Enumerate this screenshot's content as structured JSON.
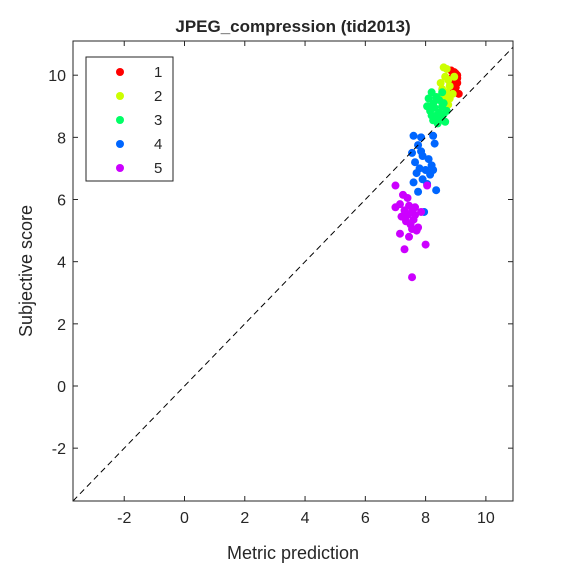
{
  "chart_data": {
    "type": "scatter",
    "title": "JPEG_compression (tid2013)",
    "xlabel": "Metric prediction",
    "ylabel": "Subjective score",
    "xlim": [
      -3.7,
      10.9
    ],
    "ylim": [
      -3.7,
      11.1
    ],
    "xticks": [
      -2,
      0,
      2,
      4,
      6,
      8,
      10
    ],
    "yticks": [
      -2,
      0,
      2,
      4,
      6,
      8,
      10
    ],
    "grid": false,
    "legend_position": "top-left",
    "reference_line": "y = x, dashed",
    "series": [
      {
        "name": "1",
        "color": "#ff0000",
        "points": [
          [
            8.85,
            10.15
          ],
          [
            8.95,
            10.1
          ],
          [
            9.0,
            10.05
          ],
          [
            9.05,
            10.0
          ],
          [
            8.9,
            9.95
          ],
          [
            8.95,
            9.85
          ],
          [
            9.05,
            9.75
          ],
          [
            8.8,
            9.8
          ],
          [
            8.9,
            9.65
          ],
          [
            9.0,
            9.6
          ],
          [
            8.85,
            9.55
          ],
          [
            9.1,
            9.4
          ],
          [
            9.05,
            9.9
          ],
          [
            8.95,
            9.7
          ]
        ]
      },
      {
        "name": "2",
        "color": "#ccff00",
        "points": [
          [
            8.6,
            10.25
          ],
          [
            8.7,
            10.2
          ],
          [
            8.65,
            9.95
          ],
          [
            8.75,
            9.85
          ],
          [
            8.5,
            9.75
          ],
          [
            8.8,
            9.65
          ],
          [
            8.55,
            9.55
          ],
          [
            8.7,
            9.45
          ],
          [
            8.9,
            9.4
          ],
          [
            8.6,
            9.35
          ],
          [
            8.45,
            9.3
          ],
          [
            8.8,
            9.25
          ],
          [
            8.65,
            9.15
          ],
          [
            8.75,
            9.05
          ],
          [
            8.95,
            9.95
          ]
        ]
      },
      {
        "name": "3",
        "color": "#00ff66",
        "points": [
          [
            8.2,
            9.45
          ],
          [
            8.35,
            9.3
          ],
          [
            8.1,
            9.25
          ],
          [
            8.45,
            9.2
          ],
          [
            8.25,
            9.1
          ],
          [
            8.55,
            9.0
          ],
          [
            8.05,
            9.0
          ],
          [
            8.3,
            8.95
          ],
          [
            8.15,
            8.85
          ],
          [
            8.45,
            8.8
          ],
          [
            8.6,
            8.75
          ],
          [
            8.35,
            8.7
          ],
          [
            8.5,
            8.6
          ],
          [
            8.25,
            8.55
          ],
          [
            8.4,
            8.45
          ],
          [
            8.7,
            8.85
          ],
          [
            8.55,
            9.45
          ],
          [
            8.6,
            9.1
          ],
          [
            8.2,
            8.7
          ],
          [
            8.65,
            8.5
          ]
        ]
      },
      {
        "name": "4",
        "color": "#0066ff",
        "points": [
          [
            7.6,
            8.05
          ],
          [
            7.85,
            8.0
          ],
          [
            8.25,
            8.05
          ],
          [
            7.75,
            7.75
          ],
          [
            8.3,
            7.8
          ],
          [
            7.55,
            7.5
          ],
          [
            7.9,
            7.4
          ],
          [
            8.1,
            7.3
          ],
          [
            7.65,
            7.2
          ],
          [
            8.2,
            7.1
          ],
          [
            7.8,
            7.0
          ],
          [
            8.0,
            6.95
          ],
          [
            7.7,
            6.85
          ],
          [
            8.15,
            6.8
          ],
          [
            7.9,
            6.65
          ],
          [
            8.05,
            6.5
          ],
          [
            7.6,
            6.55
          ],
          [
            7.75,
            6.25
          ],
          [
            8.35,
            6.3
          ],
          [
            7.95,
            5.6
          ],
          [
            8.25,
            6.95
          ],
          [
            7.85,
            7.55
          ]
        ]
      },
      {
        "name": "5",
        "color": "#cc00ff",
        "points": [
          [
            7.0,
            6.45
          ],
          [
            8.05,
            6.45
          ],
          [
            7.25,
            6.15
          ],
          [
            7.4,
            6.05
          ],
          [
            7.15,
            5.85
          ],
          [
            7.45,
            5.8
          ],
          [
            7.65,
            5.75
          ],
          [
            7.0,
            5.75
          ],
          [
            7.3,
            5.65
          ],
          [
            7.55,
            5.6
          ],
          [
            7.85,
            5.6
          ],
          [
            7.4,
            5.5
          ],
          [
            7.2,
            5.45
          ],
          [
            7.6,
            5.35
          ],
          [
            7.35,
            5.3
          ],
          [
            7.5,
            5.2
          ],
          [
            7.75,
            5.1
          ],
          [
            7.55,
            5.05
          ],
          [
            7.7,
            5.0
          ],
          [
            7.15,
            4.9
          ],
          [
            7.45,
            4.8
          ],
          [
            8.0,
            4.55
          ],
          [
            7.3,
            4.4
          ],
          [
            7.55,
            3.5
          ],
          [
            7.65,
            5.5
          ]
        ]
      }
    ]
  }
}
